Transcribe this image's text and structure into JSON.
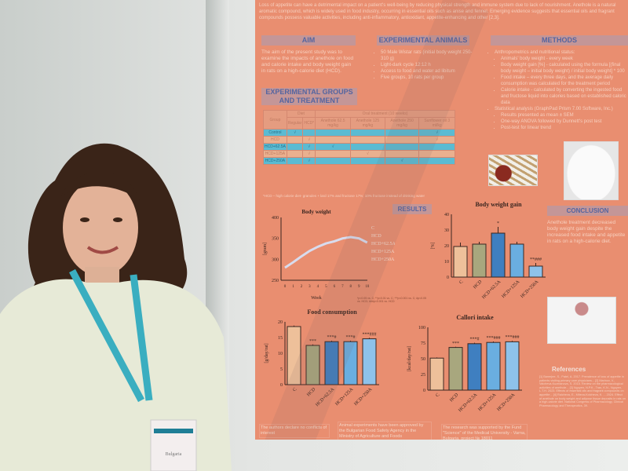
{
  "poster": {
    "intro": "Loss of appetite can have a detrimental impact on a patient's well-being by reducing physical strength and immune system due to lack of nourishment. Anethole is a natural aromatic compound, which is widely used in food industry, occurring in essential oils such as anise and fennel. Emerging evidence suggests that essential oils and fragrant compounds possess valuable activities, including anti-inflammatory, antioxidant, appetite-enhancing and other [2,3].",
    "aim": {
      "title": "AIM",
      "text": "The aim of the present study was to examine the impacts of anethole on food and calorie intake and body weight gain in rats on a high-calorie diet (HCD)."
    },
    "animals": {
      "title": "EXPERIMENTAL ANIMALS",
      "items": [
        "50 Male Wistar rats (initial body weight 250-310 g)",
        "Light-dark cycle 12:12 h",
        "Access to food and water ad libitum",
        "Five groups, 10 rats per group"
      ]
    },
    "methods": {
      "title": "METHODS",
      "items": [
        "Anthropometrics and nutritional status:",
        "Animals' body weight - every week",
        "Body weight gain [%] - calculated using the formula [(final body weight – initial body weight) / initial body weight] * 100",
        "Food intake – every three days, and the average daily consumption was calculated for the treatment period",
        "Calorie intake - calculated by converting the ingested food and fructose liquid into calories based on established caloric data",
        "Statistical analysis (GraphPad Prism 7.00 Software, Inc.)",
        "Results presented as mean ± SEM",
        "One-way ANOVA followed by Dunnett's post test",
        "Post-test for linear trend"
      ]
    },
    "groups": {
      "title": "EXPERIMENTAL GROUPS AND TREATMENT",
      "head1": [
        "Group",
        "Diet",
        "Oral treatment (10 weeks)"
      ],
      "head2": [
        "Regular",
        "HCD*",
        "Anethole 62.5 mg/kg",
        "Anethole 125 mg/kg",
        "Anethole 250 mg/kg",
        "Sunflower oil 3 ml/kg"
      ],
      "rows": [
        [
          "Control",
          "√",
          "",
          "",
          "",
          "",
          "√"
        ],
        [
          "HCD",
          "",
          "√",
          "",
          "",
          "",
          "√"
        ],
        [
          "HCD+62.5A",
          "",
          "√",
          "√",
          "",
          "",
          ""
        ],
        [
          "HCD+125A",
          "",
          "√",
          "",
          "√",
          "",
          ""
        ],
        [
          "HCD+250A",
          "",
          "√",
          "",
          "",
          "√",
          ""
        ]
      ],
      "footnote": "*HCD – high calorie diet- granules + lard 17% and fructose 17%; 10% fructose instead of drinking water"
    },
    "results_title": "RESULTS",
    "conclusion": {
      "title": "CONCLUSION",
      "text": "Anethole treatment decreased body weight gain despite the increased food intake and appetite in rats on a high-calorie diet."
    },
    "stats_note": "*p<0.05 vs. C; **p<0.01 vs. C; ***p<0.001 vs. C; #p<0.05 vs. HCD; ###p<0.001 vs. HCD",
    "references": {
      "title": "References",
      "text": "[1] Banerjee, S., Patel, A. 2017. Prevalence of loss of appetite in patients visiting primary care physicians... [2] Marinov, V., Valcheva-Kuzmanova, S. 2015. Review on the pharmacological activities of anethole... [3] Nguyen, N.P.K., Tran, K.N., Nguyen, L.T.H. 2023. Effects of essential oils and fragrant compounds on appetite... [4] Ralcheva, E., Miteva-Koicheva, K. ... 2024. Effect of anethole on body weight and adipose tissue deposits in rats on a high-calorie diet. National Congress of Pharmacology, Clinical Pharmacology and Therapeutics, 39."
    },
    "footer": [
      "The authors declare no conflicts of interest",
      "Animal experiments have been approved by the Bulgarian Food Safety Agency in the Ministry of Agriculture and Foods (№177/07.07.2017)",
      "The research was supported by the Fund \"Science\" of the Medical University - Varna, Bulgaria, project № 18011"
    ]
  },
  "chart_data": [
    {
      "type": "line",
      "title": "Body weight",
      "xlabel": "Week",
      "ylabel": "[gram]",
      "x": [
        0,
        1,
        2,
        3,
        4,
        5,
        6,
        7,
        8,
        9,
        10
      ],
      "ylim": [
        250,
        400
      ],
      "legend": [
        "C",
        "HCD",
        "HCD+62.5A",
        "HCD+125A",
        "HCD+250A"
      ],
      "series": [
        {
          "name": "mean",
          "values": [
            280,
            293,
            307,
            320,
            330,
            338,
            343,
            350,
            353,
            350,
            340
          ]
        }
      ]
    },
    {
      "type": "bar",
      "title": "Body weight gain",
      "ylabel": "[%]",
      "ylim": [
        0,
        40
      ],
      "categories": [
        "C",
        "HCD",
        "HCD+62.5A",
        "HCD+125A",
        "HCD+250A"
      ],
      "values": [
        19.5,
        21,
        28,
        21,
        7
      ],
      "errors": [
        2.5,
        1.5,
        4,
        1.5,
        2
      ],
      "annotations": [
        "",
        "",
        "*",
        "",
        "**###"
      ]
    },
    {
      "type": "bar",
      "title": "Food consumption",
      "ylabel": "[g/day/rat]",
      "ylim": [
        0,
        20
      ],
      "categories": [
        "C",
        "HCD",
        "HCD+62.5A",
        "HCD+125A",
        "HCD+250A"
      ],
      "values": [
        18.5,
        12.5,
        13.7,
        13.7,
        14.6
      ],
      "errors": [
        0.3,
        0.3,
        0.3,
        0.3,
        0.3
      ],
      "annotations": [
        "",
        "***",
        "***#",
        "***#",
        "***###"
      ]
    },
    {
      "type": "bar",
      "title": "Callori intake",
      "ylabel": "[kcal/day/rat]",
      "ylim": [
        0,
        100
      ],
      "categories": [
        "C",
        "HCD",
        "HCD+62.5A",
        "HCD+125A",
        "HCD+250A"
      ],
      "values": [
        51,
        68,
        74,
        76,
        77
      ],
      "errors": [
        1,
        1,
        1.5,
        1.5,
        1.5
      ],
      "annotations": [
        "",
        "***",
        "***#",
        "***###",
        "***###"
      ]
    }
  ],
  "bar_colors": [
    "#eec09a",
    "#a8a77e",
    "#3f7fc0",
    "#6aaee0",
    "#8ec2ea"
  ],
  "badge": {
    "country": "Bulgaria"
  }
}
